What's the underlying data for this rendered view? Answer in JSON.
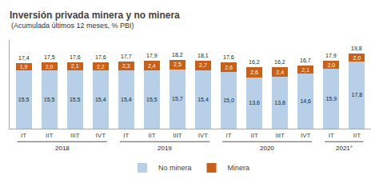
{
  "chart_data": {
    "type": "bar",
    "title": "Inversión privada minera y no minera",
    "subtitle": "(Acumulada últimos 12 meses, % PBI)",
    "categories": [
      "IT",
      "IIT",
      "IIIT",
      "IVT",
      "IT",
      "IIT",
      "IIIT",
      "IVT",
      "IT",
      "IIT",
      "IIIT",
      "IVT",
      "IT",
      "IIT"
    ],
    "series": [
      {
        "name": "No minera",
        "color": "#b8cfe8",
        "values": [
          15.5,
          15.5,
          15.5,
          15.4,
          15.4,
          15.5,
          15.7,
          15.4,
          15.0,
          13.6,
          13.8,
          14.6,
          15.9,
          17.8
        ],
        "value_labels": [
          "15,5",
          "15,5",
          "15,5",
          "15,4",
          "15,4",
          "15,5",
          "15,7",
          "15,4",
          "15,0",
          "13,6",
          "13,8",
          "14,6",
          "15,9",
          "17,8"
        ]
      },
      {
        "name": "Minera",
        "color": "#c8601a",
        "values": [
          1.9,
          2.0,
          2.1,
          2.2,
          2.3,
          2.4,
          2.5,
          2.7,
          2.6,
          2.6,
          2.4,
          2.1,
          2.0,
          2.0
        ],
        "value_labels": [
          "1,9",
          "2,0",
          "2,1",
          "2,2",
          "2,3",
          "2,4",
          "2,5",
          "2,7",
          "2,6",
          "2,6",
          "2,4",
          "2,1",
          "2,0",
          "2,0"
        ]
      }
    ],
    "totals": [
      17.4,
      17.5,
      17.6,
      17.6,
      17.7,
      17.9,
      18.2,
      18.1,
      17.6,
      16.2,
      16.2,
      16.7,
      17.9,
      19.8
    ],
    "total_labels": [
      "17,4",
      "17,5",
      "17,6",
      "17,6",
      "17,7",
      "17,9",
      "18,2",
      "18,1",
      "17,6",
      "16,2",
      "16,2",
      "16,7",
      "17,9",
      "19,8"
    ],
    "annotations": [
      {
        "text": "2018",
        "start": 0,
        "end": 3
      },
      {
        "text": "2019",
        "start": 4,
        "end": 7
      },
      {
        "text": "2020",
        "start": 8,
        "end": 11
      },
      {
        "text": "2021°",
        "start": 12,
        "end": 13
      }
    ],
    "stacked": true,
    "data_labels": true,
    "grid": false,
    "legend": "bottom",
    "tick_labels": "x",
    "ylim": [
      0,
      23.5
    ]
  }
}
